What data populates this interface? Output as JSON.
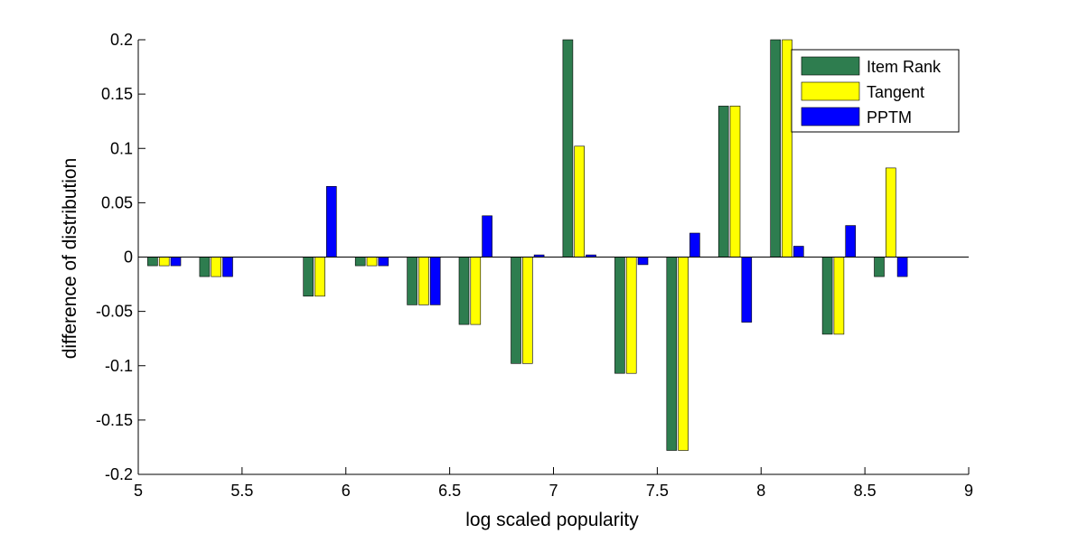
{
  "chart_data": {
    "type": "bar",
    "title": "",
    "xlabel": "log scaled popularity",
    "ylabel": "difference of distribution",
    "xlim": [
      5,
      9
    ],
    "ylim": [
      -0.2,
      0.2
    ],
    "x_ticks": [
      "5",
      "5.5",
      "6",
      "6.5",
      "7",
      "7.5",
      "8",
      "8.5",
      "9"
    ],
    "y_ticks": [
      "-0.2",
      "-0.15",
      "-0.1",
      "-0.05",
      "0",
      "0.05",
      "0.1",
      "0.15",
      "0.2"
    ],
    "grid": false,
    "legend_position": "top-right",
    "x": [
      5.125,
      5.375,
      5.875,
      6.125,
      6.375,
      6.625,
      6.875,
      7.125,
      7.375,
      7.625,
      7.875,
      8.125,
      8.375,
      8.625
    ],
    "series": [
      {
        "name": "Item Rank",
        "color": "#2e7d4f",
        "values": [
          -0.008,
          -0.018,
          -0.036,
          -0.008,
          -0.044,
          -0.062,
          -0.098,
          0.2,
          -0.107,
          -0.178,
          0.139,
          0.2,
          -0.071,
          -0.018
        ]
      },
      {
        "name": "Tangent",
        "color": "#ffff00",
        "values": [
          -0.008,
          -0.018,
          -0.036,
          -0.008,
          -0.044,
          -0.062,
          -0.098,
          0.102,
          -0.107,
          -0.178,
          0.139,
          0.2,
          -0.071,
          0.082
        ]
      },
      {
        "name": "PPTM",
        "color": "#0000ff",
        "values": [
          -0.008,
          -0.018,
          0.065,
          -0.008,
          -0.044,
          0.038,
          0.002,
          0.002,
          -0.007,
          0.022,
          -0.06,
          0.01,
          0.029,
          -0.018
        ]
      }
    ]
  }
}
